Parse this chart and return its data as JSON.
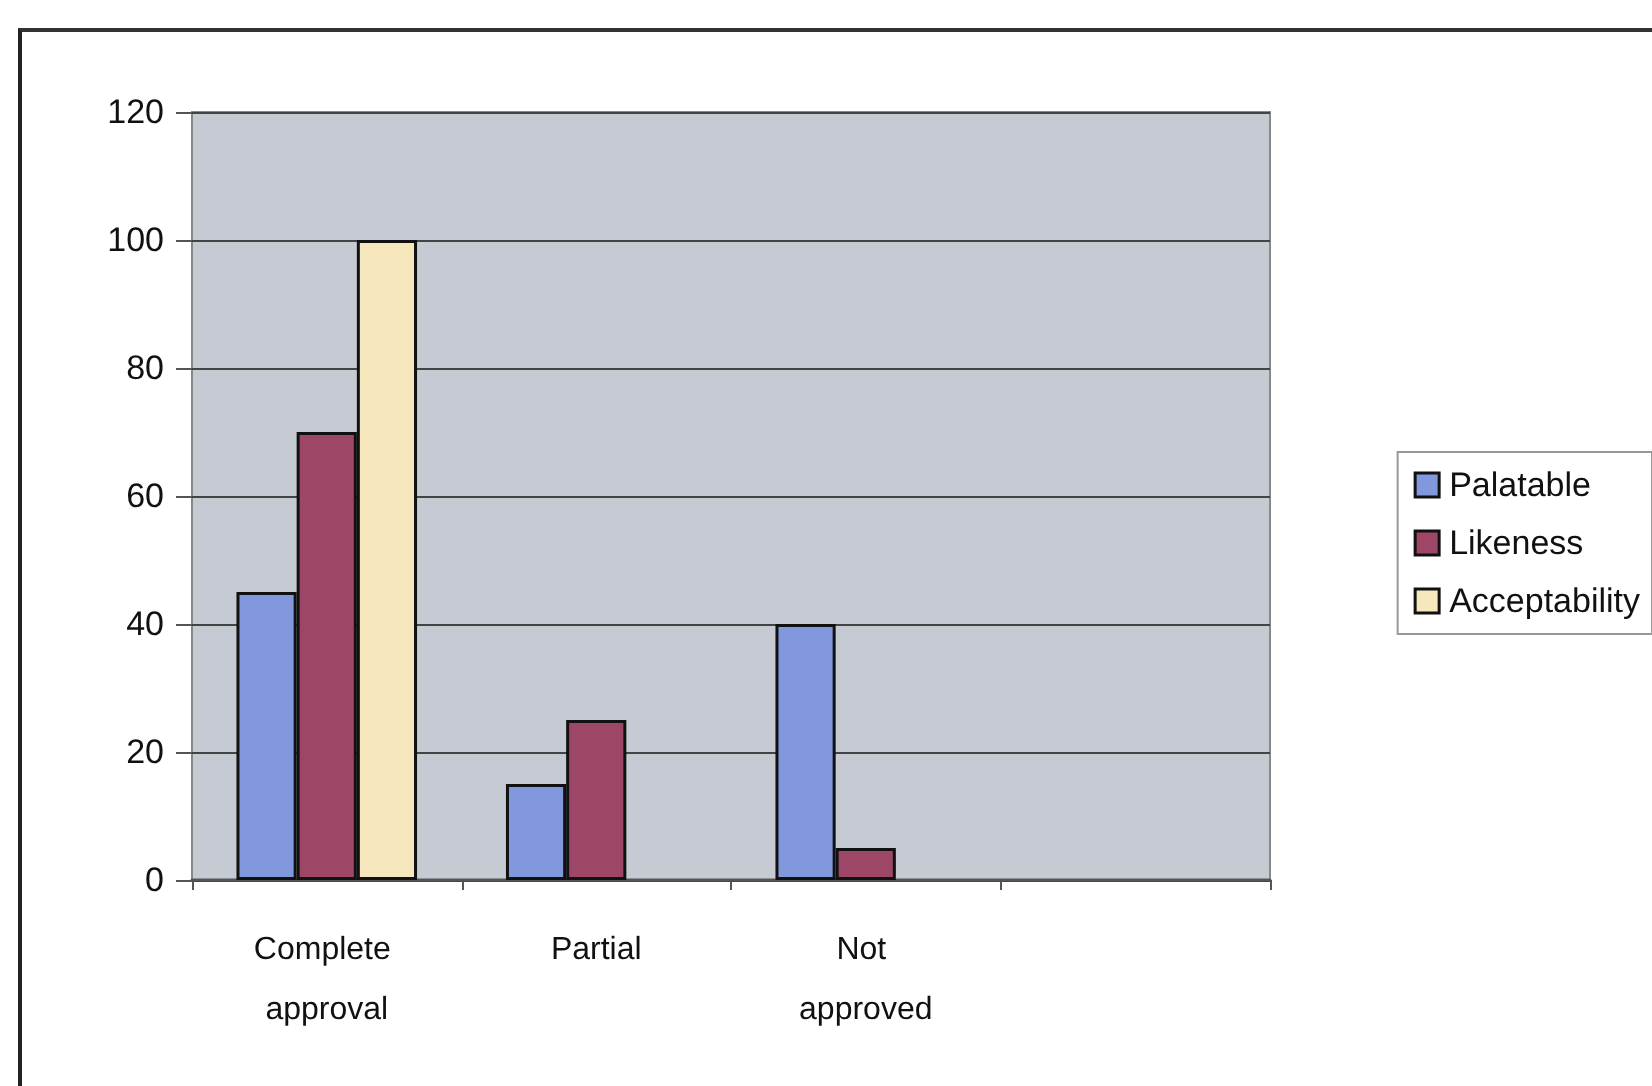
{
  "chart_data": {
    "type": "bar",
    "categories": [
      "Complete approval",
      "Partial",
      "Not approved",
      null
    ],
    "series": [
      {
        "name": "Palatable",
        "color": "#8198dc",
        "values": [
          45,
          15,
          40,
          null
        ]
      },
      {
        "name": "Likeness",
        "color": "#9e4668",
        "values": [
          70,
          25,
          5,
          null
        ]
      },
      {
        "name": "Acceptability",
        "color": "#f6e8bc",
        "values": [
          100,
          null,
          null,
          null
        ]
      }
    ],
    "ylim": [
      0,
      120
    ],
    "yticks": [
      0,
      20,
      40,
      60,
      80,
      100,
      120
    ],
    "grid": "y",
    "legend": "right"
  }
}
